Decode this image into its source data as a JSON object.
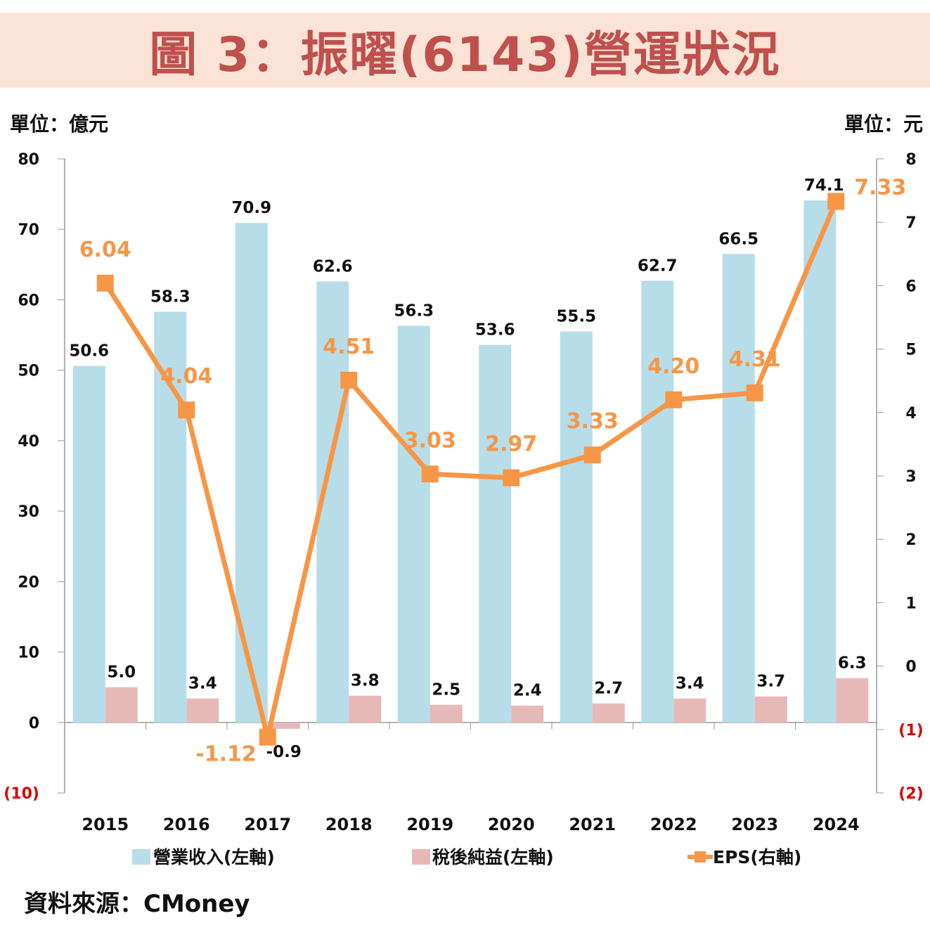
{
  "title": "圖 3：振曜(6143)營運狀況",
  "unit_left": "單位：億元",
  "unit_right": "單位：元",
  "source": "資料來源：CMoney",
  "colors": {
    "revenue": "#b7dde8",
    "profit": "#e6b9b8",
    "eps": "#f79646",
    "title": "#c0504d",
    "title_bg": "#fbe4d5"
  },
  "chart_data": {
    "type": "bar",
    "categories": [
      "2015",
      "2016",
      "2017",
      "2018",
      "2019",
      "2020",
      "2021",
      "2022",
      "2023",
      "2024"
    ],
    "series": [
      {
        "name": "營業收入(左軸)",
        "axis": "left",
        "type": "bar",
        "values": [
          50.6,
          58.3,
          70.9,
          62.6,
          56.3,
          53.6,
          55.5,
          62.7,
          66.5,
          74.1
        ],
        "labels": [
          "50.6",
          "58.3",
          "70.9",
          "62.6",
          "56.3",
          "53.6",
          "55.5",
          "62.7",
          "66.5",
          "74.1"
        ]
      },
      {
        "name": "稅後純益(左軸)",
        "axis": "left",
        "type": "bar",
        "values": [
          5.0,
          3.4,
          -0.9,
          3.8,
          2.5,
          2.4,
          2.7,
          3.4,
          3.7,
          6.3
        ],
        "labels": [
          "5.0",
          "3.4",
          "-0.9",
          "3.8",
          "2.5",
          "2.4",
          "2.7",
          "3.4",
          "3.7",
          "6.3"
        ]
      },
      {
        "name": "EPS(右軸)",
        "axis": "right",
        "type": "line",
        "values": [
          6.04,
          4.04,
          -1.12,
          4.51,
          3.03,
          2.97,
          3.33,
          4.2,
          4.31,
          7.33
        ],
        "labels": [
          "6.04",
          "4.04",
          "-1.12",
          "4.51",
          "3.03",
          "2.97",
          "3.33",
          "4.20",
          "4.31",
          "7.33"
        ]
      }
    ],
    "left_axis": {
      "range": [
        -10,
        80
      ],
      "ticks": [
        "(10)",
        "0",
        "10",
        "20",
        "30",
        "40",
        "50",
        "60",
        "70",
        "80"
      ],
      "tick_values": [
        -10,
        0,
        10,
        20,
        30,
        40,
        50,
        60,
        70,
        80
      ]
    },
    "right_axis": {
      "range": [
        -2,
        8
      ],
      "ticks": [
        "(2)",
        "(1)",
        "0",
        "1",
        "2",
        "3",
        "4",
        "5",
        "6",
        "7",
        "8"
      ],
      "tick_values": [
        -2,
        -1,
        0,
        1,
        2,
        3,
        4,
        5,
        6,
        7,
        8
      ]
    },
    "legend_position": "bottom",
    "grid": false
  }
}
